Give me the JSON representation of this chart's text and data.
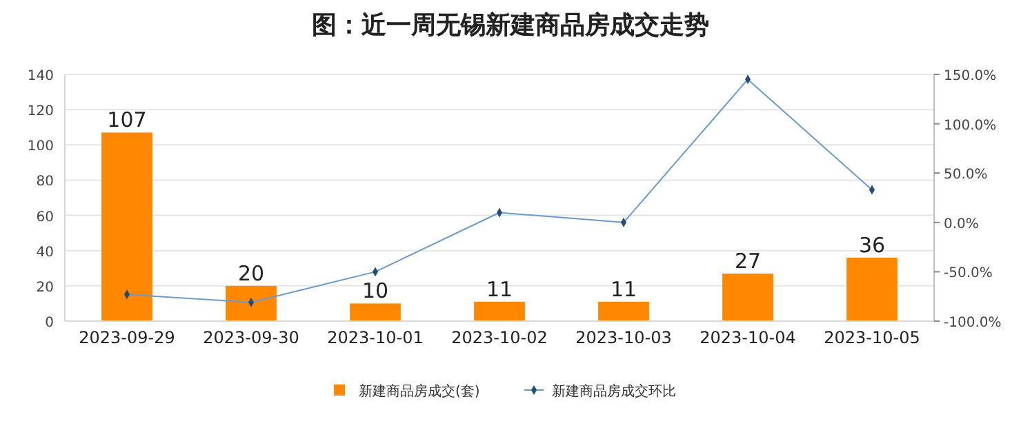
{
  "chart_data": {
    "type": "bar",
    "title": "图：近一周无锡新建商品房成交走势",
    "categories": [
      "2023-09-29",
      "2023-09-30",
      "2023-10-01",
      "2023-10-02",
      "2023-10-03",
      "2023-10-04",
      "2023-10-05"
    ],
    "series": [
      {
        "name": "新建商品房成交(套)",
        "color": "#ff8800",
        "values": [
          107,
          20,
          10,
          11,
          11,
          27,
          36
        ],
        "value_labels": [
          "107",
          "20",
          "10",
          "11",
          "11",
          "27",
          "36"
        ]
      },
      {
        "name": "新建商品房成交环比",
        "type": "line",
        "axis": "y2",
        "color": "#6a9bd0",
        "marker": "diamond",
        "values": [
          -73,
          -81,
          -50,
          10,
          0,
          145,
          33
        ]
      }
    ],
    "ylim": [
      0,
      140
    ],
    "yticks": [
      0,
      20,
      40,
      60,
      80,
      100,
      120,
      140
    ],
    "y2lim": [
      -100,
      150
    ],
    "y2ticks": [
      {
        "value": -100,
        "label": "-100.0%"
      },
      {
        "value": -50,
        "label": "-50.0%"
      },
      {
        "value": 0,
        "label": "0.0%"
      },
      {
        "value": 50,
        "label": "50.0%"
      },
      {
        "value": 100,
        "label": "100.0%"
      },
      {
        "value": 150,
        "label": "150.0%"
      }
    ],
    "grid": "y",
    "legend": "bottom"
  }
}
